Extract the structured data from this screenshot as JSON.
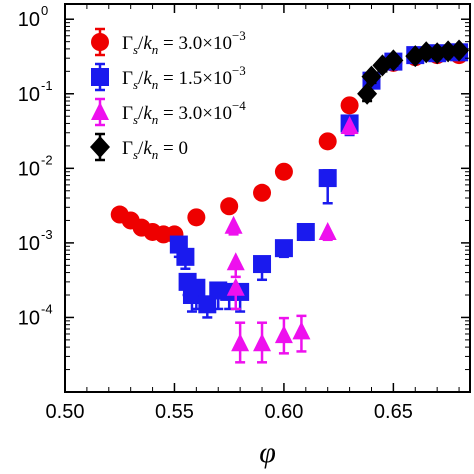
{
  "chart_data": {
    "type": "scatter",
    "xlabel": "φ",
    "ylabel": "",
    "xlim": [
      0.5,
      0.685
    ],
    "ylim": [
      1e-05,
      1.6
    ],
    "yscale": "log",
    "x_ticks": [
      0.5,
      0.55,
      0.6,
      0.65
    ],
    "x_tick_labels": [
      "0.50",
      "0.55",
      "0.60",
      "0.65"
    ],
    "y_ticks": [
      0.0001,
      0.001,
      0.01,
      0.1,
      1
    ],
    "y_tick_labels": [
      {
        "base": "10",
        "exp": "-4"
      },
      {
        "base": "10",
        "exp": "-3"
      },
      {
        "base": "10",
        "exp": "-2"
      },
      {
        "base": "10",
        "exp": "-1"
      },
      {
        "base": "10",
        "exp": "0"
      }
    ],
    "grid": false,
    "legend_position": "top-left",
    "series": [
      {
        "legend": {
          "symbol": "Γ",
          "sub": "s",
          "den": "k",
          "den_sub": "n",
          "eq": " = 3.0×10",
          "exp": "−3"
        },
        "marker": "circle",
        "color": "#ee0000",
        "error_bars": false,
        "points": [
          {
            "x": 0.525,
            "y": 0.0024
          },
          {
            "x": 0.53,
            "y": 0.002
          },
          {
            "x": 0.535,
            "y": 0.0016
          },
          {
            "x": 0.54,
            "y": 0.0014
          },
          {
            "x": 0.545,
            "y": 0.0013
          },
          {
            "x": 0.55,
            "y": 0.0013
          },
          {
            "x": 0.56,
            "y": 0.0022
          },
          {
            "x": 0.575,
            "y": 0.0031
          },
          {
            "x": 0.59,
            "y": 0.0047
          },
          {
            "x": 0.6,
            "y": 0.009
          },
          {
            "x": 0.62,
            "y": 0.023
          },
          {
            "x": 0.63,
            "y": 0.07
          },
          {
            "x": 0.64,
            "y": 0.15
          },
          {
            "x": 0.65,
            "y": 0.26
          },
          {
            "x": 0.66,
            "y": 0.31
          },
          {
            "x": 0.67,
            "y": 0.33
          },
          {
            "x": 0.68,
            "y": 0.33
          }
        ]
      },
      {
        "legend": {
          "symbol": "Γ",
          "sub": "s",
          "den": "k",
          "den_sub": "n",
          "eq": " = 1.5×10",
          "exp": "−3"
        },
        "marker": "square",
        "color": "#1a1aee",
        "error_bars": true,
        "points": [
          {
            "x": 0.552,
            "y": 0.00095,
            "err_lo": 0.0003,
            "err_hi": 0
          },
          {
            "x": 0.555,
            "y": 0.00065,
            "err_lo": 0.0002,
            "err_hi": 0
          },
          {
            "x": 0.556,
            "y": 0.0003,
            "err_lo": 0.0001,
            "err_hi": 0
          },
          {
            "x": 0.558,
            "y": 0.0002,
            "err_lo": 8e-05,
            "err_hi": 0
          },
          {
            "x": 0.56,
            "y": 0.00025,
            "err_lo": 0.00012,
            "err_hi": 0
          },
          {
            "x": 0.565,
            "y": 0.00015,
            "err_lo": 5e-05,
            "err_hi": 0
          },
          {
            "x": 0.57,
            "y": 0.00023,
            "err_lo": 0.0001,
            "err_hi": 0
          },
          {
            "x": 0.575,
            "y": 0.00022,
            "err_lo": 9e-05,
            "err_hi": 0
          },
          {
            "x": 0.58,
            "y": 0.00022,
            "err_lo": 0.0001,
            "err_hi": 0
          },
          {
            "x": 0.59,
            "y": 0.00052,
            "err_lo": 0.0002,
            "err_hi": 0
          },
          {
            "x": 0.6,
            "y": 0.00085,
            "err_lo": 0.0002,
            "err_hi": 0
          },
          {
            "x": 0.61,
            "y": 0.0014,
            "err_lo": 0.0003,
            "err_hi": 0
          },
          {
            "x": 0.62,
            "y": 0.0074,
            "err_lo": 0.004,
            "err_hi": 0.002
          },
          {
            "x": 0.63,
            "y": 0.04,
            "err_lo": 0.012,
            "err_hi": 0
          },
          {
            "x": 0.64,
            "y": 0.15,
            "err_lo": 0.03,
            "err_hi": 0
          },
          {
            "x": 0.65,
            "y": 0.27,
            "err_lo": 0.04,
            "err_hi": 0
          },
          {
            "x": 0.66,
            "y": 0.33,
            "err_lo": 0.05,
            "err_hi": 0
          },
          {
            "x": 0.67,
            "y": 0.35,
            "err_lo": 0.05,
            "err_hi": 0
          },
          {
            "x": 0.68,
            "y": 0.36,
            "err_lo": 0.06,
            "err_hi": 0
          }
        ]
      },
      {
        "legend": {
          "symbol": "Γ",
          "sub": "s",
          "den": "k",
          "den_sub": "n",
          "eq": " = 3.0×10",
          "exp": "−4"
        },
        "marker": "triangle",
        "color": "#ee10ee",
        "error_bars": true,
        "points": [
          {
            "x": 0.577,
            "y": 0.0017,
            "err_lo": 0.0004,
            "err_hi": 0
          },
          {
            "x": 0.578,
            "y": 0.00055,
            "err_lo": 0.0002,
            "err_hi": 0
          },
          {
            "x": 0.578,
            "y": 0.00025,
            "err_lo": 0.00012,
            "err_hi": 0
          },
          {
            "x": 0.58,
            "y": 4.5e-05,
            "err_lo": 2e-05,
            "err_hi": 4e-05
          },
          {
            "x": 0.59,
            "y": 4.5e-05,
            "err_lo": 2e-05,
            "err_hi": 4e-05
          },
          {
            "x": 0.6,
            "y": 5.8e-05,
            "err_lo": 2.5e-05,
            "err_hi": 4e-05
          },
          {
            "x": 0.608,
            "y": 6.5e-05,
            "err_lo": 3e-05,
            "err_hi": 4e-05
          },
          {
            "x": 0.62,
            "y": 0.0014,
            "err_lo": 0.0003,
            "err_hi": 0
          },
          {
            "x": 0.63,
            "y": 0.037,
            "err_lo": 0.008,
            "err_hi": 0
          }
        ]
      },
      {
        "legend": {
          "symbol": "Γ",
          "sub": "s",
          "den": "k",
          "den_sub": "n",
          "eq": " = 0",
          "exp": ""
        },
        "marker": "diamond",
        "color": "#000000",
        "error_bars": true,
        "points": [
          {
            "x": 0.638,
            "y": 0.1,
            "err_lo": 0.02,
            "err_hi": 0
          },
          {
            "x": 0.64,
            "y": 0.17,
            "err_lo": 0.03,
            "err_hi": 0
          },
          {
            "x": 0.645,
            "y": 0.24,
            "err_lo": 0.04,
            "err_hi": 0
          },
          {
            "x": 0.65,
            "y": 0.28,
            "err_lo": 0.04,
            "err_hi": 0
          },
          {
            "x": 0.66,
            "y": 0.32,
            "err_lo": 0.04,
            "err_hi": 0
          },
          {
            "x": 0.665,
            "y": 0.36,
            "err_lo": 0.05,
            "err_hi": 0
          },
          {
            "x": 0.67,
            "y": 0.35,
            "err_lo": 0.05,
            "err_hi": 0
          },
          {
            "x": 0.675,
            "y": 0.37,
            "err_lo": 0.05,
            "err_hi": 0
          },
          {
            "x": 0.68,
            "y": 0.38,
            "err_lo": 0.05,
            "err_hi": 0
          }
        ]
      }
    ]
  }
}
